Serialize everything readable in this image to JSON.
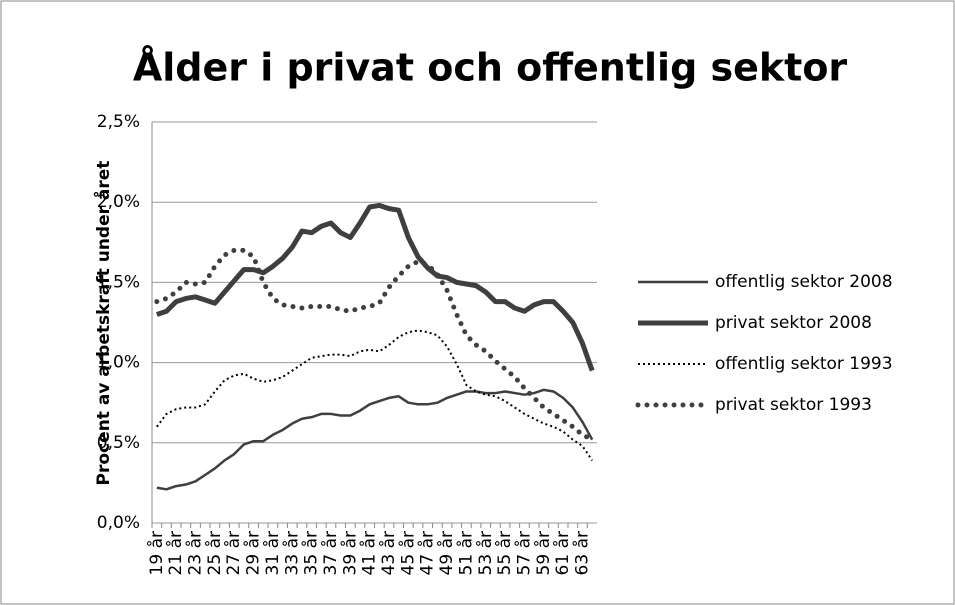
{
  "chart_data": {
    "type": "line",
    "title": "Ålder i privat och offentlig sektor",
    "y_label": "Procent av arbetskraft under året",
    "categories": [
      "19 år",
      null,
      "21 år",
      null,
      "23 år",
      null,
      "25 år",
      null,
      "27 år",
      null,
      "29 år",
      null,
      "31 år",
      null,
      "33 år",
      null,
      "35 år",
      null,
      "37 år",
      null,
      "39 år",
      null,
      "41 år",
      null,
      "43 år",
      null,
      "45 år",
      null,
      "47 år",
      null,
      "49 år",
      null,
      "51 år",
      null,
      "53 år",
      null,
      "55 år",
      null,
      "57 år",
      null,
      "59 år",
      null,
      "61 år",
      null,
      "63 år",
      null
    ],
    "series": [
      {
        "name": "offentlig sektor 2008",
        "color": "#3f3f3f",
        "line_style": "solid-thin",
        "values": [
          0.22,
          0.21,
          0.23,
          0.24,
          0.26,
          0.3,
          0.34,
          0.39,
          0.43,
          0.49,
          0.51,
          0.51,
          0.55,
          0.58,
          0.62,
          0.65,
          0.66,
          0.68,
          0.68,
          0.67,
          0.67,
          0.7,
          0.74,
          0.76,
          0.78,
          0.79,
          0.75,
          0.74,
          0.74,
          0.75,
          0.78,
          0.8,
          0.82,
          0.82,
          0.81,
          0.81,
          0.82,
          0.81,
          0.8,
          0.81,
          0.83,
          0.82,
          0.78,
          0.72,
          0.63,
          0.52
        ]
      },
      {
        "name": "privat sektor 2008",
        "color": "#3f3f3f",
        "line_style": "solid-thick",
        "values": [
          1.3,
          1.32,
          1.38,
          1.4,
          1.41,
          1.39,
          1.37,
          1.44,
          1.51,
          1.58,
          1.58,
          1.56,
          1.6,
          1.65,
          1.72,
          1.82,
          1.81,
          1.85,
          1.87,
          1.81,
          1.78,
          1.87,
          1.97,
          1.98,
          1.96,
          1.95,
          1.78,
          1.66,
          1.59,
          1.54,
          1.53,
          1.5,
          1.49,
          1.48,
          1.44,
          1.38,
          1.38,
          1.34,
          1.32,
          1.36,
          1.38,
          1.38,
          1.32,
          1.25,
          1.12,
          0.95
        ]
      },
      {
        "name": "offentlig sektor 1993",
        "color": "#000000",
        "line_style": "dotted-thin",
        "values": [
          0.6,
          0.68,
          0.71,
          0.72,
          0.72,
          0.74,
          0.82,
          0.89,
          0.92,
          0.93,
          0.9,
          0.88,
          0.89,
          0.91,
          0.95,
          0.99,
          1.03,
          1.04,
          1.05,
          1.05,
          1.04,
          1.07,
          1.08,
          1.07,
          1.11,
          1.16,
          1.19,
          1.2,
          1.19,
          1.17,
          1.1,
          0.99,
          0.86,
          0.82,
          0.8,
          0.79,
          0.76,
          0.72,
          0.68,
          0.65,
          0.62,
          0.6,
          0.57,
          0.52,
          0.48,
          0.39
        ]
      },
      {
        "name": "privat sektor 1993",
        "color": "#3f3f3f",
        "line_style": "dotted-thick",
        "values": [
          1.38,
          1.4,
          1.44,
          1.5,
          1.49,
          1.5,
          1.6,
          1.67,
          1.7,
          1.7,
          1.66,
          1.5,
          1.4,
          1.36,
          1.35,
          1.34,
          1.35,
          1.35,
          1.35,
          1.33,
          1.32,
          1.34,
          1.35,
          1.37,
          1.47,
          1.54,
          1.6,
          1.63,
          1.61,
          1.55,
          1.45,
          1.3,
          1.17,
          1.11,
          1.07,
          1.01,
          0.96,
          0.91,
          0.84,
          0.78,
          0.72,
          0.68,
          0.64,
          0.6,
          0.55,
          0.52
        ]
      }
    ],
    "ylim": [
      0,
      2.5
    ],
    "yticks": [
      {
        "value": 0,
        "label": "0,0%"
      },
      {
        "value": 0.5,
        "label": "0,5%"
      },
      {
        "value": 1.0,
        "label": "1,0%"
      },
      {
        "value": 1.5,
        "label": "1,5%"
      },
      {
        "value": 2.0,
        "label": "2,0%"
      },
      {
        "value": 2.5,
        "label": "2,5%"
      }
    ],
    "grid": true,
    "legend": "right"
  }
}
